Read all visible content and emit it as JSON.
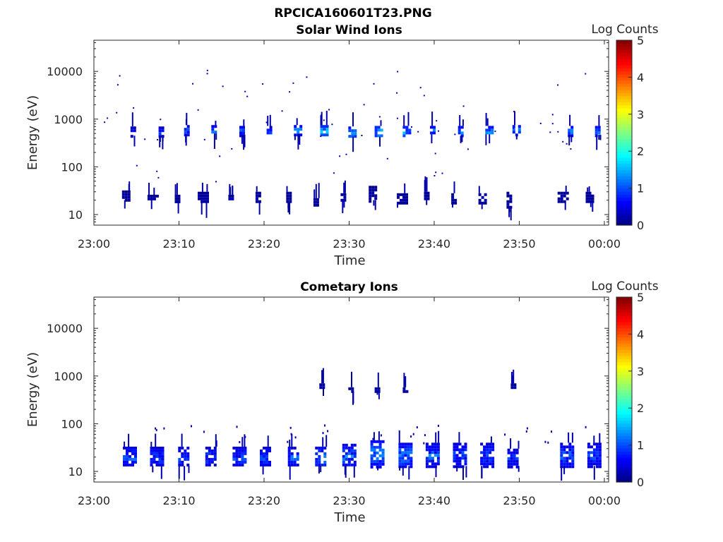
{
  "figure": {
    "title": "RPCICA160601T23.PNG"
  },
  "chart_data": [
    {
      "type": "heatmap",
      "title": "Solar Wind Ions",
      "xlabel": "Time",
      "ylabel": "Energy (eV)",
      "x_ticks": [
        "23:00",
        "23:10",
        "23:20",
        "23:30",
        "23:40",
        "23:50",
        "00:00"
      ],
      "x_range_minutes": [
        0,
        60.5
      ],
      "y_ticks": [
        "10",
        "100",
        "1000",
        "10000"
      ],
      "y_scale": "log",
      "y_range": [
        6,
        45000
      ],
      "colorbar": {
        "label": "Log Counts",
        "ticks": [
          "0",
          "1",
          "2",
          "3",
          "4",
          "5"
        ],
        "range": [
          0,
          5
        ],
        "colormap": "jet"
      },
      "bursts": [
        {
          "t": 3.3,
          "e": 20,
          "e_hi": 32,
          "dt": 0.9,
          "level": 0.2
        },
        {
          "t": 6.3,
          "e": 20,
          "e_hi": 26,
          "dt": 1.0,
          "level": 0.2
        },
        {
          "t": 9.5,
          "e": 18,
          "e_hi": 26,
          "dt": 0.4,
          "level": 0.2
        },
        {
          "t": 12.2,
          "e": 18,
          "e_hi": 30,
          "dt": 1.2,
          "level": 0.2
        },
        {
          "t": 15.8,
          "e": 20,
          "e_hi": 26,
          "dt": 0.6,
          "level": 0.2
        },
        {
          "t": 19.0,
          "e": 18,
          "e_hi": 30,
          "dt": 0.5,
          "level": 0.2
        },
        {
          "t": 22.6,
          "e": 18,
          "e_hi": 30,
          "dt": 0.6,
          "level": 0.2
        },
        {
          "t": 25.8,
          "e": 16,
          "e_hi": 22,
          "dt": 0.6,
          "level": 0.2
        },
        {
          "t": 29.0,
          "e": 20,
          "e_hi": 28,
          "dt": 0.5,
          "level": 0.2
        },
        {
          "t": 32.3,
          "e": 20,
          "e_hi": 40,
          "dt": 0.9,
          "level": 0.2
        },
        {
          "t": 35.6,
          "e": 18,
          "e_hi": 28,
          "dt": 1.0,
          "level": 0.2
        },
        {
          "t": 38.8,
          "e": 20,
          "e_hi": 30,
          "dt": 0.5,
          "level": 0.2
        },
        {
          "t": 42.0,
          "e": 18,
          "e_hi": 28,
          "dt": 0.5,
          "level": 0.2
        },
        {
          "t": 45.2,
          "e": 18,
          "e_hi": 28,
          "dt": 0.7,
          "level": 0.2
        },
        {
          "t": 48.5,
          "e": 14,
          "e_hi": 30,
          "dt": 0.5,
          "level": 0.2
        },
        {
          "t": 54.5,
          "e": 18,
          "e_hi": 30,
          "dt": 1.1,
          "level": 0.2
        },
        {
          "t": 57.8,
          "e": 18,
          "e_hi": 30,
          "dt": 0.9,
          "level": 0.2
        },
        {
          "t": 4.3,
          "e": 450,
          "e_hi": 700,
          "dt": 0.4,
          "level": 0.8
        },
        {
          "t": 7.6,
          "e": 450,
          "e_hi": 700,
          "dt": 0.5,
          "level": 0.9
        },
        {
          "t": 10.6,
          "e": 480,
          "e_hi": 750,
          "dt": 0.6,
          "level": 1.2
        },
        {
          "t": 13.8,
          "e": 500,
          "e_hi": 750,
          "dt": 0.6,
          "level": 1.3
        },
        {
          "t": 17.1,
          "e": 470,
          "e_hi": 720,
          "dt": 0.6,
          "level": 1.2
        },
        {
          "t": 20.3,
          "e": 450,
          "e_hi": 720,
          "dt": 0.6,
          "level": 1.0
        },
        {
          "t": 23.5,
          "e": 480,
          "e_hi": 750,
          "dt": 0.8,
          "level": 1.4
        },
        {
          "t": 26.6,
          "e": 480,
          "e_hi": 750,
          "dt": 0.9,
          "level": 1.8
        },
        {
          "t": 29.9,
          "e": 420,
          "e_hi": 700,
          "dt": 0.8,
          "level": 1.6
        },
        {
          "t": 33.0,
          "e": 430,
          "e_hi": 720,
          "dt": 0.9,
          "level": 1.8
        },
        {
          "t": 36.3,
          "e": 450,
          "e_hi": 720,
          "dt": 0.8,
          "level": 1.7
        },
        {
          "t": 39.5,
          "e": 480,
          "e_hi": 720,
          "dt": 0.6,
          "level": 1.4
        },
        {
          "t": 42.8,
          "e": 450,
          "e_hi": 720,
          "dt": 0.6,
          "level": 1.3
        },
        {
          "t": 46.0,
          "e": 480,
          "e_hi": 720,
          "dt": 0.7,
          "level": 1.5
        },
        {
          "t": 49.2,
          "e": 480,
          "e_hi": 750,
          "dt": 0.8,
          "level": 1.6
        },
        {
          "t": 55.7,
          "e": 470,
          "e_hi": 720,
          "dt": 0.6,
          "level": 1.4
        },
        {
          "t": 58.9,
          "e": 470,
          "e_hi": 720,
          "dt": 0.6,
          "level": 1.5
        }
      ]
    },
    {
      "type": "heatmap",
      "title": "Cometary Ions",
      "xlabel": "Time",
      "ylabel": "Energy (eV)",
      "x_ticks": [
        "23:00",
        "23:10",
        "23:20",
        "23:30",
        "23:40",
        "23:50",
        "00:00"
      ],
      "x_range_minutes": [
        0,
        60.5
      ],
      "y_ticks": [
        "10",
        "100",
        "1000",
        "10000"
      ],
      "y_scale": "log",
      "y_range": [
        6,
        45000
      ],
      "colorbar": {
        "label": "Log Counts",
        "ticks": [
          "0",
          "1",
          "2",
          "3",
          "4",
          "5"
        ],
        "range": [
          0,
          5
        ],
        "colormap": "jet"
      },
      "bursts": [
        {
          "t": 3.4,
          "e": 13,
          "e_hi": 33,
          "dt": 1.4,
          "level": 1.1
        },
        {
          "t": 6.6,
          "e": 13,
          "e_hi": 33,
          "dt": 1.4,
          "level": 1.0
        },
        {
          "t": 9.9,
          "e": 13,
          "e_hi": 33,
          "dt": 1.2,
          "level": 1.0
        },
        {
          "t": 13.1,
          "e": 13,
          "e_hi": 33,
          "dt": 1.3,
          "level": 1.0
        },
        {
          "t": 16.3,
          "e": 13,
          "e_hi": 33,
          "dt": 1.4,
          "level": 1.0
        },
        {
          "t": 19.5,
          "e": 13,
          "e_hi": 33,
          "dt": 1.2,
          "level": 1.0
        },
        {
          "t": 22.8,
          "e": 13,
          "e_hi": 33,
          "dt": 1.2,
          "level": 1.1
        },
        {
          "t": 26.0,
          "e": 13,
          "e_hi": 33,
          "dt": 1.3,
          "level": 1.3
        },
        {
          "t": 29.2,
          "e": 13,
          "e_hi": 38,
          "dt": 1.6,
          "level": 1.2
        },
        {
          "t": 32.5,
          "e": 13,
          "e_hi": 45,
          "dt": 1.6,
          "level": 1.3
        },
        {
          "t": 35.8,
          "e": 13,
          "e_hi": 40,
          "dt": 1.5,
          "level": 1.3
        },
        {
          "t": 39.0,
          "e": 13,
          "e_hi": 40,
          "dt": 1.6,
          "level": 1.1
        },
        {
          "t": 42.2,
          "e": 13,
          "e_hi": 40,
          "dt": 1.5,
          "level": 1.0
        },
        {
          "t": 45.4,
          "e": 13,
          "e_hi": 40,
          "dt": 1.5,
          "level": 1.0
        },
        {
          "t": 48.6,
          "e": 13,
          "e_hi": 30,
          "dt": 1.3,
          "level": 0.9
        },
        {
          "t": 54.8,
          "e": 13,
          "e_hi": 40,
          "dt": 1.6,
          "level": 1.1
        },
        {
          "t": 58.0,
          "e": 13,
          "e_hi": 40,
          "dt": 1.4,
          "level": 1.0
        },
        {
          "t": 26.5,
          "e": 550,
          "e_hi": 700,
          "dt": 0.4,
          "level": 0.3
        },
        {
          "t": 29.9,
          "e": 480,
          "e_hi": 580,
          "dt": 0.6,
          "level": 0.3
        },
        {
          "t": 33.0,
          "e": 500,
          "e_hi": 580,
          "dt": 0.5,
          "level": 0.3
        },
        {
          "t": 36.3,
          "e": 480,
          "e_hi": 580,
          "dt": 0.6,
          "level": 0.3
        },
        {
          "t": 49.0,
          "e": 580,
          "e_hi": 700,
          "dt": 0.4,
          "level": 0.3
        }
      ]
    }
  ]
}
